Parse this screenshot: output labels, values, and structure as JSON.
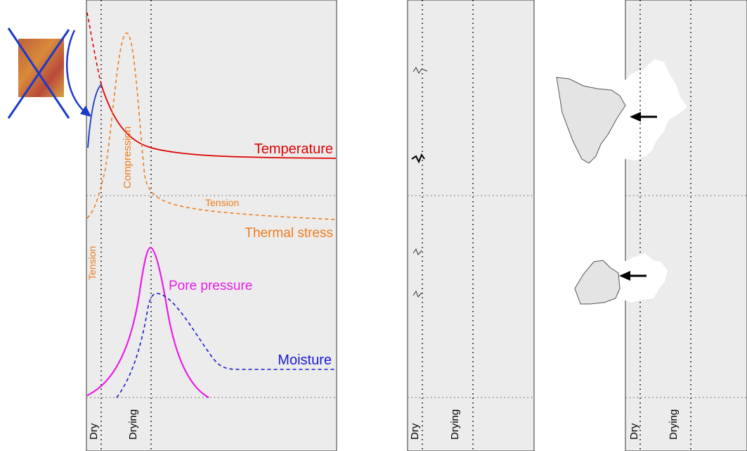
{
  "labels": {
    "temperature": "Temperature",
    "thermal_stress": "Thermal stress",
    "pore_pressure": "Pore pressure",
    "moisture": "Moisture",
    "compression": "Compression",
    "tension_top": "Tension",
    "tension_side": "Tension"
  },
  "panels": [
    {
      "zones": [
        "Dry",
        "Drying"
      ]
    },
    {
      "zones": [
        "Dry",
        "Drying"
      ]
    },
    {
      "zones": [
        "Dry",
        "Drying"
      ]
    }
  ]
}
